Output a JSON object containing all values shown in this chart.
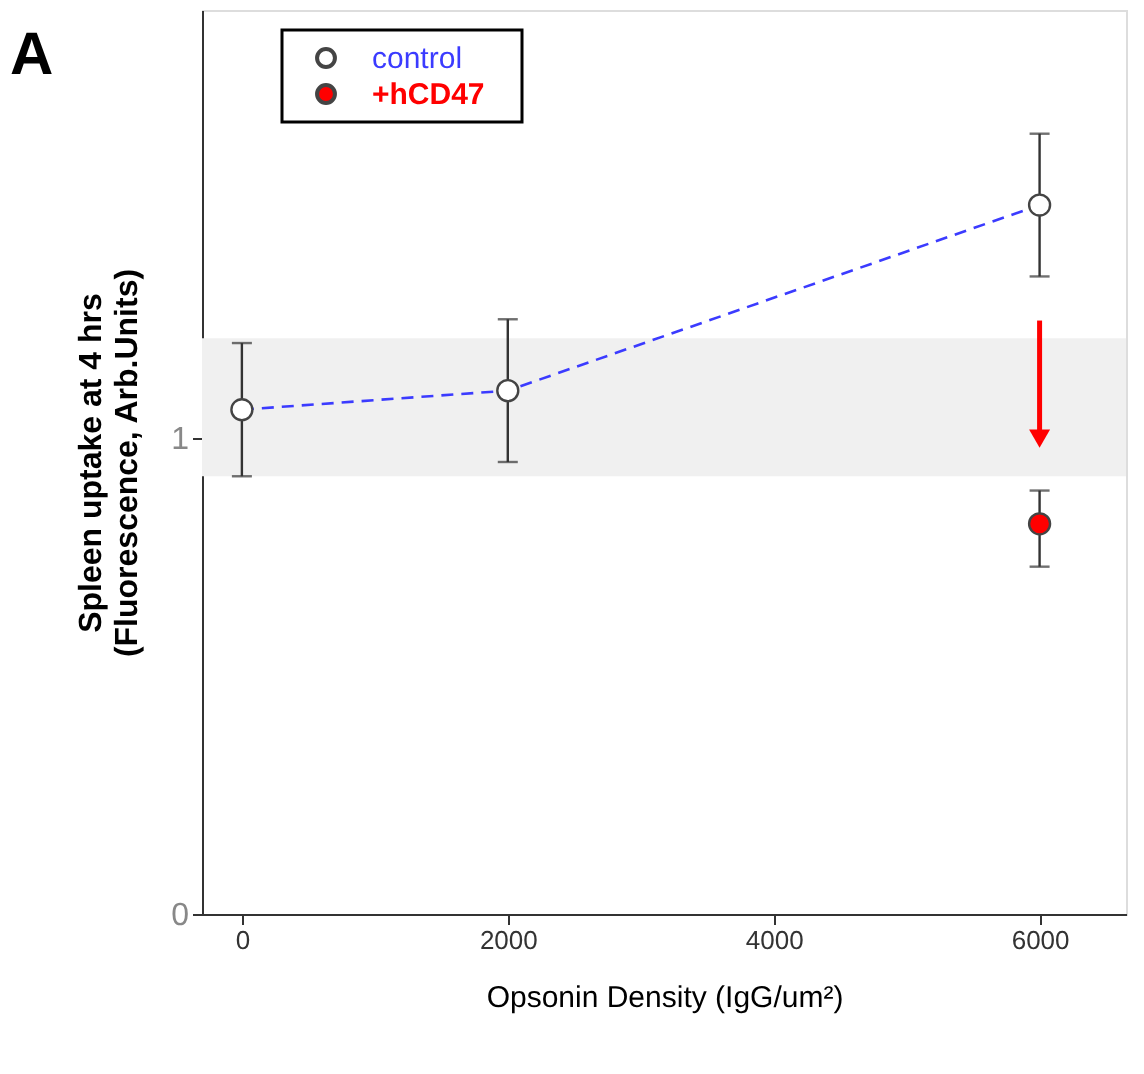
{
  "chart_data": {
    "type": "scatter",
    "title": "A",
    "xlabel": "Opsonin Density (IgG/um²)",
    "ylabel": [
      "Spleen uptake at 4 hrs",
      "(Fluorescence, Arb.Units)"
    ],
    "xlim": [
      -300,
      6650
    ],
    "xticks": [
      0,
      2000,
      4000,
      6000
    ],
    "ylim": [
      0,
      1.9
    ],
    "yticks": [
      0,
      1
    ],
    "grid": false,
    "legend": "top left",
    "marker": "circle",
    "bands": [
      {
        "axis": "y",
        "from": 0.92,
        "to": 1.21,
        "color": "#f0f0f0"
      }
    ],
    "series": [
      {
        "name": "control",
        "type": "line",
        "line_style": "dashed",
        "color": "#3b3bff",
        "x": [
          0,
          2000,
          6000
        ],
        "values": [
          1.06,
          1.1,
          1.49
        ],
        "errors": [
          0.14,
          0.15,
          0.15
        ]
      },
      {
        "name": "+hCD47",
        "color": "#ff0000",
        "x": [
          6000
        ],
        "values": [
          0.82
        ],
        "errors": [
          [
            0.73,
            0.89
          ]
        ]
      }
    ]
  }
}
